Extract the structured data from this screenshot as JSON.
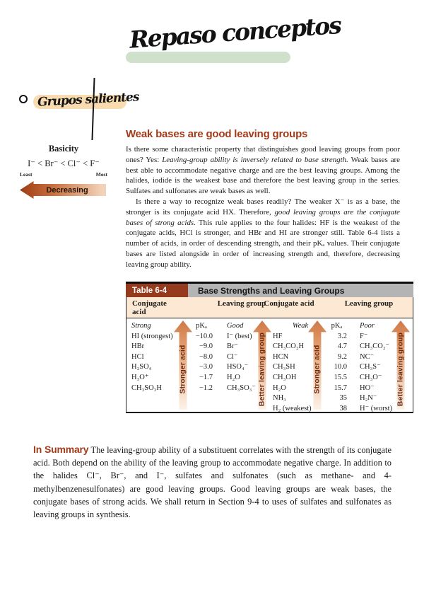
{
  "colors": {
    "accent_rust": "#a33b1a",
    "table_tag_bg": "#963a1d",
    "table_bar_bg": "#b4b4b4",
    "table_band_bg": "#fce8d3",
    "arrow_gradient_dark": "#cc7848",
    "arrow_gradient_light": "#fdf2e7",
    "arrow_label_brown": "#6d2a10",
    "green_highlight": "#cfe0cb",
    "orange_highlight": "#f8dcb0"
  },
  "handwriting": {
    "title": "Repaso conceptos",
    "note": "Grupos salientes"
  },
  "basicity": {
    "title": "Basicity",
    "series": "I⁻ < Br⁻ < Cl⁻ < F⁻",
    "least": "Least",
    "most": "Most",
    "arrow_label": "Decreasing"
  },
  "main": {
    "heading": "Weak bases are good leaving groups",
    "p1": {
      "r0": "Is there some characteristic property that distinguishes good leaving groups from poor ones? Yes: ",
      "r1": "Leaving-group ability is inversely related to base strength.",
      "r2": " Weak bases are best able to accommodate negative charge and are the best leaving groups. Among the halides, iodide is the weakest base and therefore the best leaving group in the series. Sulfates and sulfonates are weak bases as well."
    },
    "p2": {
      "r0": "Is there a way to recognize weak bases readily? The weaker X⁻ is as a base, the stronger is its conjugate acid HX. Therefore, ",
      "r1": "good leaving groups are the conjugate bases of strong acids",
      "r2": ". This rule applies to the four halides: HF is the weakest of the conjugate acids, HCl is stronger, and HBr and HI are stronger still. Table 6-4 lists a number of acids, in order of descending strength, and their pKₐ values. Their conjugate bases are listed alongside in order of increasing strength and, therefore, decreasing leaving group ability."
    }
  },
  "table": {
    "tag": "Table 6-4",
    "title": "Base Strengths and Leaving Groups",
    "col_headers": [
      "Conjugate acid",
      "Leaving group",
      "Conjugate acid",
      "Leaving group"
    ],
    "left": {
      "col_strength": "Strong",
      "col_pka": "pKₐ",
      "col_lg": "Good",
      "arrow_acid": "Stronger acid",
      "arrow_lg": "Better leaving group",
      "rows": [
        {
          "acid": "HI (strongest)",
          "pka": "−10.0",
          "lg": "I⁻ (best)"
        },
        {
          "acid": "HBr",
          "pka": "−9.0",
          "lg": "Br⁻"
        },
        {
          "acid": "HCl",
          "pka": "−8.0",
          "lg": "Cl⁻"
        },
        {
          "acid": "H₂SO₄",
          "pka": "−3.0",
          "lg": "HSO₄⁻"
        },
        {
          "acid": "H₃O⁺",
          "pka": "−1.7",
          "lg": "H₂O"
        },
        {
          "acid": "CH₃SO₃H",
          "pka": "−1.2",
          "lg": "CH₃SO₃⁻"
        }
      ]
    },
    "right": {
      "col_strength": "Weak",
      "col_pka": "pKₐ",
      "col_lg": "Poor",
      "arrow_acid": "Stronger acid",
      "arrow_lg": "Better leaving group",
      "rows": [
        {
          "acid": "HF",
          "pka": "3.2",
          "lg": "F⁻"
        },
        {
          "acid": "CH₃CO₂H",
          "pka": "4.7",
          "lg": "CH₃CO₂⁻"
        },
        {
          "acid": "HCN",
          "pka": "9.2",
          "lg": "NC⁻"
        },
        {
          "acid": "CH₃SH",
          "pka": "10.0",
          "lg": "CH₃S⁻"
        },
        {
          "acid": "CH₃OH",
          "pka": "15.5",
          "lg": "CH₃O⁻"
        },
        {
          "acid": "H₂O",
          "pka": "15.7",
          "lg": "HO⁻"
        },
        {
          "acid": "NH₃",
          "pka": "35",
          "lg": "H₂N⁻"
        },
        {
          "acid": "H₂ (weakest)",
          "pka": "38",
          "lg": "H⁻ (worst)"
        }
      ]
    }
  },
  "summary": {
    "label": "In Summary",
    "text": " The leaving-group ability of a substituent correlates with the strength of its conjugate acid. Both depend on the ability of the leaving group to accommodate negative charge. In addition to the halides Cl⁻, Br⁻, and I⁻, sulfates and sulfonates (such as methane- and 4-methylbenzenesulfonates) are good leaving groups. Good leaving groups are weak bases, the conjugate bases of strong acids. We shall return in Section 9-4 to uses of sulfates and sulfonates as leaving groups in synthesis."
  }
}
